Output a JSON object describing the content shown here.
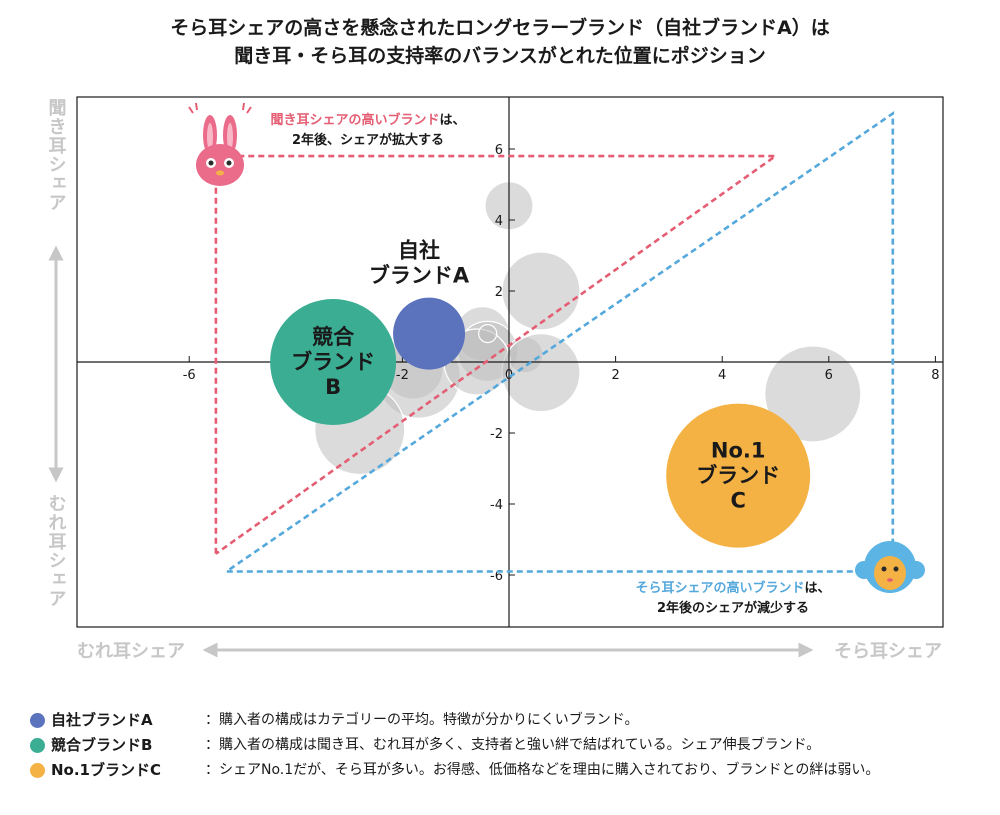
{
  "title_lines": [
    "そら耳シェアの高さを懸念されたロングセラーブランド（自社ブランドA）は",
    "聞き耳・そら耳の支持率のバランスがとれた位置にポジション"
  ],
  "chart_data": {
    "type": "scatter",
    "xlim": [
      -8,
      8
    ],
    "ylim": [
      -7.5,
      7.5
    ],
    "x_ticks": [
      -6,
      -2,
      0,
      2,
      4,
      6,
      8
    ],
    "y_ticks": [
      -6,
      -4,
      -2,
      2,
      4,
      6
    ],
    "grid": false,
    "axis_labels": {
      "y_top": "聞き耳シェア",
      "y_bottom": "むれ耳シェア",
      "x_left": "むれ耳シェア",
      "x_right": "そら耳シェア"
    },
    "background_bubbles": [
      {
        "x": 0.0,
        "y": 4.4,
        "size": 0.8
      },
      {
        "x": 0.6,
        "y": 2.0,
        "size": 1.3
      },
      {
        "x": -0.5,
        "y": 0.8,
        "size": 0.9
      },
      {
        "x": -0.4,
        "y": 0.3,
        "size": 1.0
      },
      {
        "x": 0.3,
        "y": 0.2,
        "size": 0.6
      },
      {
        "x": 0.6,
        "y": -0.3,
        "size": 1.3
      },
      {
        "x": -1.8,
        "y": -0.2,
        "size": 1.0
      },
      {
        "x": -1.7,
        "y": -0.4,
        "size": 1.4
      },
      {
        "x": -0.6,
        "y": 0.0,
        "size": 1.1
      },
      {
        "x": -0.4,
        "y": 0.8,
        "size": 0.3
      },
      {
        "x": -2.8,
        "y": -1.9,
        "size": 1.5
      },
      {
        "x": 5.7,
        "y": -0.9,
        "size": 1.6
      }
    ],
    "highlight_bubbles": [
      {
        "key": "a",
        "label_lines": [
          "自社",
          "ブランドA"
        ],
        "x": -1.5,
        "y": 0.8,
        "size": 1.2,
        "color": "#5b72bd"
      },
      {
        "key": "b",
        "label_lines": [
          "競合",
          "ブランド",
          "B"
        ],
        "x": -3.3,
        "y": 0.0,
        "size": 2.1,
        "color": "#3aad93"
      },
      {
        "key": "c",
        "label_lines": [
          "No.1",
          "ブランド",
          "C"
        ],
        "x": 4.3,
        "y": -3.2,
        "size": 2.4,
        "color": "#f4b245"
      }
    ],
    "annotations": [
      {
        "key": "kikimimi",
        "color": "#e45d72",
        "highlight": "聞き耳シェアの高いブランド",
        "suffix": "は、",
        "line2": "2年後、シェアが拡大する",
        "path": [
          [
            -5.5,
            -5.4
          ],
          [
            -5.5,
            5.8
          ],
          [
            5.0,
            5.8
          ],
          [
            -5.5,
            -5.4
          ]
        ]
      },
      {
        "key": "soramimi",
        "color": "#54a8dc",
        "highlight": "そら耳シェアの高いブランド",
        "suffix": "は、",
        "line2": "2年後のシェアが減少する",
        "path": [
          [
            7.2,
            -5.9
          ],
          [
            -5.3,
            -5.9
          ],
          [
            7.2,
            7.0
          ],
          [
            7.2,
            -5.9
          ]
        ]
      }
    ]
  },
  "legend": [
    {
      "name": "自社ブランドA",
      "desc": "：購入者の構成はカテゴリーの平均。特徴が分かりにくいブランド。",
      "color": "#5b72bd"
    },
    {
      "name": "競合ブランドB",
      "desc": "：購入者の構成は聞き耳、むれ耳が多く、支持者と強い絆で結ばれている。シェア伸長ブランド。",
      "color": "#3aad93"
    },
    {
      "name": "No.1ブランドC",
      "desc": "：シェアNo.1だが、そら耳が多い。お得感、低価格などを理由に購入されており、ブランドとの絆は弱い。",
      "color": "#f4b245"
    }
  ]
}
